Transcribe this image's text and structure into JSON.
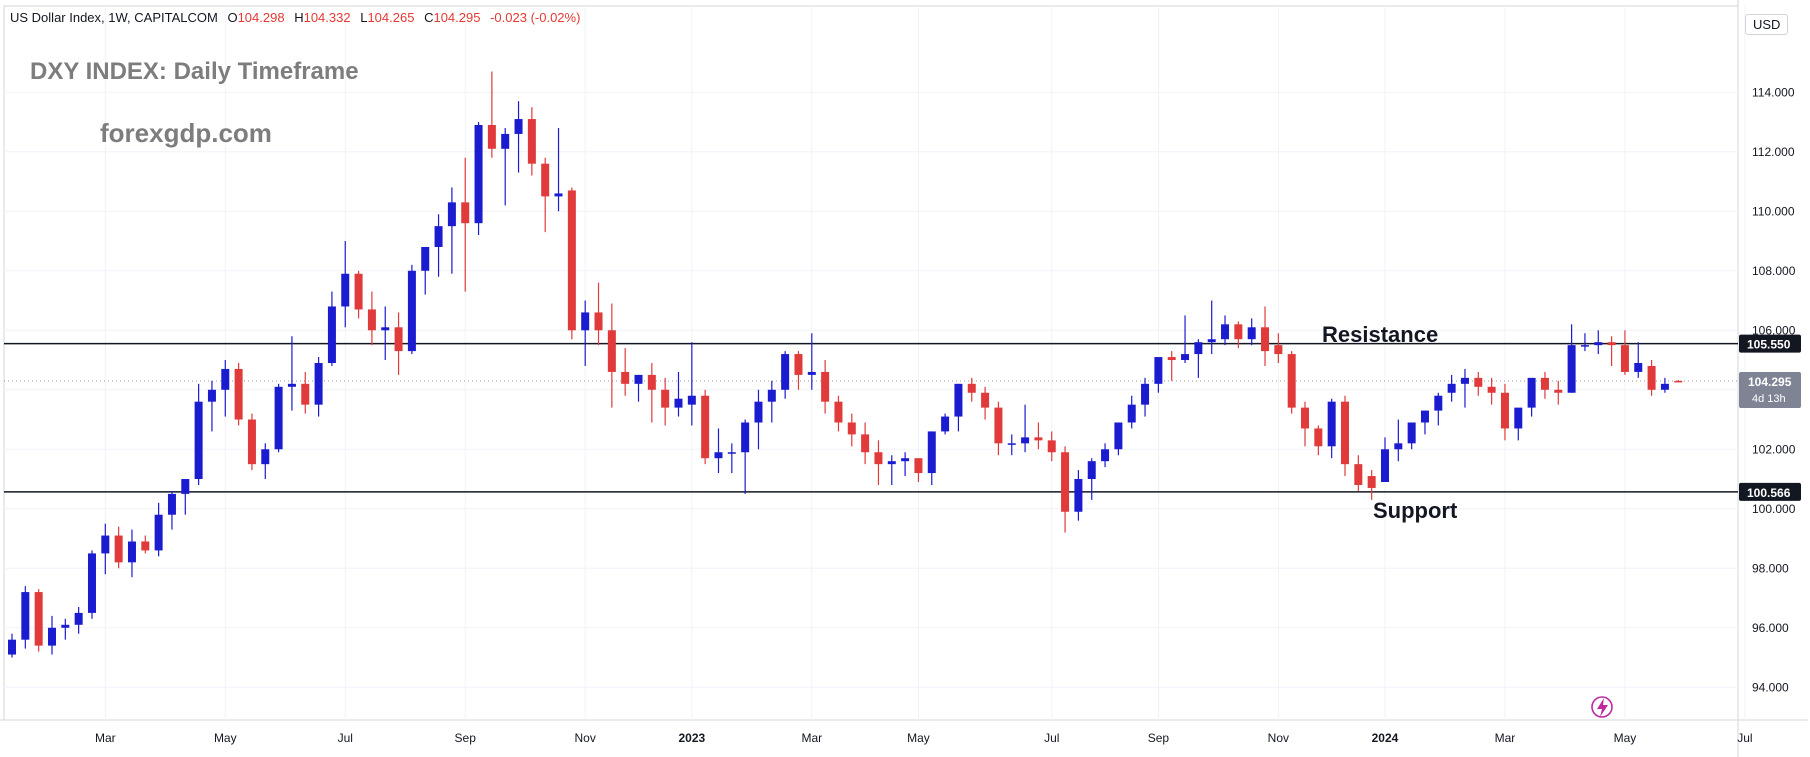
{
  "header": {
    "instrument": "US Dollar Index, 1W, CAPITALCOM",
    "open_label": "O",
    "open": "104.298",
    "high_label": "H",
    "high": "104.332",
    "low_label": "L",
    "low": "104.265",
    "close_label": "C",
    "close": "104.295",
    "change": "-0.023 (-0.02%)"
  },
  "overlay": {
    "title": "DXY INDEX: Daily Timeframe",
    "site": "forexgdp.com"
  },
  "currency_label": "USD",
  "annotations": {
    "resistance_label": "Resistance",
    "support_label": "Support"
  },
  "colors": {
    "bull": "#1b1bd0",
    "bear": "#e03a3a",
    "level_line": "#131722",
    "current_price_bg": "#7e8494",
    "level_tag_bg": "#131722",
    "grid": "#f0f3fa"
  },
  "chart_data": {
    "type": "candlestick",
    "y_axis": {
      "ticks": [
        "94.000",
        "96.000",
        "98.000",
        "100.000",
        "102.000",
        "104.000",
        "106.000",
        "108.000",
        "110.000",
        "112.000",
        "114.000"
      ],
      "ylim": [
        92.9,
        116.9
      ]
    },
    "x_axis": {
      "ticks": [
        {
          "label": "Mar",
          "bar": 7
        },
        {
          "label": "May",
          "bar": 16
        },
        {
          "label": "Jul",
          "bar": 25
        },
        {
          "label": "Sep",
          "bar": 34
        },
        {
          "label": "Nov",
          "bar": 43
        },
        {
          "label": "2023",
          "bar": 51,
          "bold": true
        },
        {
          "label": "Mar",
          "bar": 60
        },
        {
          "label": "May",
          "bar": 68
        },
        {
          "label": "Jul",
          "bar": 78
        },
        {
          "label": "Sep",
          "bar": 86
        },
        {
          "label": "Nov",
          "bar": 95
        },
        {
          "label": "2024",
          "bar": 103,
          "bold": true
        },
        {
          "label": "Mar",
          "bar": 112
        },
        {
          "label": "May",
          "bar": 121
        },
        {
          "label": "Jul",
          "bar": 130
        }
      ]
    },
    "levels": [
      {
        "name": "Resistance",
        "value": 105.55,
        "tag": "105.550"
      },
      {
        "name": "Support",
        "value": 100.566,
        "tag": "100.566"
      }
    ],
    "current_price": {
      "value": 104.295,
      "tag": "104.295",
      "countdown": "4d 13h"
    },
    "candles": [
      [
        95.1,
        95.8,
        95.0,
        95.6
      ],
      [
        95.6,
        97.4,
        95.3,
        97.2
      ],
      [
        97.2,
        97.3,
        95.2,
        95.4
      ],
      [
        95.4,
        96.4,
        95.1,
        96.0
      ],
      [
        96.0,
        96.3,
        95.6,
        96.1
      ],
      [
        96.1,
        96.7,
        95.8,
        96.5
      ],
      [
        96.5,
        98.6,
        96.3,
        98.5
      ],
      [
        98.5,
        99.5,
        97.8,
        99.1
      ],
      [
        99.1,
        99.4,
        98.0,
        98.2
      ],
      [
        98.2,
        99.3,
        97.7,
        98.9
      ],
      [
        98.9,
        99.1,
        98.5,
        98.6
      ],
      [
        98.6,
        100.2,
        98.4,
        99.8
      ],
      [
        99.8,
        100.6,
        99.3,
        100.5
      ],
      [
        100.5,
        101.0,
        99.8,
        101.0
      ],
      [
        101.0,
        104.2,
        100.8,
        103.6
      ],
      [
        103.6,
        104.3,
        102.6,
        104.0
      ],
      [
        104.0,
        105.0,
        103.1,
        104.7
      ],
      [
        104.7,
        104.9,
        102.8,
        103.0
      ],
      [
        103.0,
        103.2,
        101.3,
        101.5
      ],
      [
        101.5,
        102.2,
        101.0,
        102.0
      ],
      [
        102.0,
        104.2,
        101.9,
        104.1
      ],
      [
        104.1,
        105.8,
        103.3,
        104.2
      ],
      [
        104.2,
        104.6,
        103.2,
        103.5
      ],
      [
        103.5,
        105.1,
        103.1,
        104.9
      ],
      [
        104.9,
        107.3,
        104.8,
        106.8
      ],
      [
        106.8,
        109.0,
        106.1,
        107.9
      ],
      [
        107.9,
        108.0,
        106.4,
        106.7
      ],
      [
        106.7,
        107.3,
        105.5,
        106.0
      ],
      [
        106.0,
        106.8,
        105.0,
        106.1
      ],
      [
        106.1,
        106.6,
        104.5,
        105.3
      ],
      [
        105.3,
        108.2,
        105.2,
        108.0
      ],
      [
        108.0,
        108.6,
        107.2,
        108.8
      ],
      [
        108.8,
        109.9,
        107.8,
        109.5
      ],
      [
        109.5,
        110.8,
        107.9,
        110.3
      ],
      [
        110.3,
        111.8,
        107.3,
        109.6
      ],
      [
        109.6,
        113.0,
        109.2,
        112.9
      ],
      [
        112.9,
        114.7,
        111.8,
        112.1
      ],
      [
        112.1,
        112.8,
        110.2,
        112.6
      ],
      [
        112.6,
        113.7,
        111.3,
        113.1
      ],
      [
        113.1,
        113.5,
        111.2,
        111.6
      ],
      [
        111.6,
        111.8,
        109.3,
        110.5
      ],
      [
        110.5,
        112.8,
        110.0,
        110.6
      ],
      [
        110.7,
        110.8,
        105.7,
        106.0
      ],
      [
        106.0,
        107.0,
        104.8,
        106.6
      ],
      [
        106.6,
        107.6,
        105.5,
        106.0
      ],
      [
        106.0,
        106.9,
        103.4,
        104.6
      ],
      [
        104.6,
        105.4,
        103.8,
        104.2
      ],
      [
        104.2,
        104.5,
        103.6,
        104.5
      ],
      [
        104.5,
        104.9,
        102.9,
        104.0
      ],
      [
        104.0,
        104.4,
        102.8,
        103.4
      ],
      [
        103.4,
        104.6,
        103.1,
        103.7
      ],
      [
        103.5,
        105.6,
        102.8,
        103.8
      ],
      [
        103.8,
        104.0,
        101.5,
        101.7
      ],
      [
        101.7,
        102.7,
        101.2,
        101.9
      ],
      [
        101.9,
        102.2,
        101.2,
        101.9
      ],
      [
        101.9,
        103.0,
        100.5,
        102.9
      ],
      [
        102.9,
        104.0,
        102.0,
        103.6
      ],
      [
        103.6,
        104.3,
        102.9,
        104.0
      ],
      [
        104.0,
        105.3,
        103.7,
        105.2
      ],
      [
        105.2,
        105.3,
        104.0,
        104.5
      ],
      [
        104.5,
        105.9,
        104.0,
        104.6
      ],
      [
        104.6,
        105.0,
        103.2,
        103.6
      ],
      [
        103.6,
        103.8,
        102.6,
        102.9
      ],
      [
        102.9,
        103.2,
        102.1,
        102.5
      ],
      [
        102.5,
        102.9,
        101.5,
        101.9
      ],
      [
        101.9,
        102.3,
        100.8,
        101.5
      ],
      [
        101.5,
        101.8,
        100.8,
        101.6
      ],
      [
        101.6,
        101.9,
        101.1,
        101.7
      ],
      [
        101.7,
        101.7,
        100.9,
        101.2
      ],
      [
        101.2,
        102.6,
        100.8,
        102.6
      ],
      [
        102.6,
        103.2,
        102.5,
        103.1
      ],
      [
        103.1,
        104.2,
        102.6,
        104.2
      ],
      [
        104.2,
        104.4,
        103.6,
        103.9
      ],
      [
        103.9,
        104.1,
        103.0,
        103.4
      ],
      [
        103.4,
        103.6,
        101.8,
        102.2
      ],
      [
        102.2,
        102.5,
        101.8,
        102.2
      ],
      [
        102.2,
        103.5,
        101.9,
        102.4
      ],
      [
        102.4,
        102.9,
        102.0,
        102.3
      ],
      [
        102.3,
        102.6,
        101.6,
        101.9
      ],
      [
        101.9,
        102.1,
        99.2,
        99.9
      ],
      [
        99.9,
        101.3,
        99.6,
        101.0
      ],
      [
        101.0,
        101.7,
        100.3,
        101.6
      ],
      [
        101.6,
        102.2,
        101.4,
        102.0
      ],
      [
        102.0,
        102.9,
        101.8,
        102.9
      ],
      [
        102.9,
        103.8,
        102.7,
        103.5
      ],
      [
        103.5,
        104.4,
        103.1,
        104.2
      ],
      [
        104.2,
        105.0,
        103.9,
        105.1
      ],
      [
        105.1,
        105.3,
        104.3,
        105.0
      ],
      [
        105.0,
        106.5,
        104.9,
        105.2
      ],
      [
        105.2,
        105.7,
        104.4,
        105.6
      ],
      [
        105.6,
        107.0,
        105.2,
        105.7
      ],
      [
        105.7,
        106.5,
        105.5,
        106.2
      ],
      [
        106.2,
        106.3,
        105.4,
        105.7
      ],
      [
        105.7,
        106.4,
        105.5,
        106.1
      ],
      [
        106.1,
        106.8,
        104.8,
        105.3
      ],
      [
        105.5,
        105.9,
        104.9,
        105.2
      ],
      [
        105.2,
        105.3,
        103.2,
        103.4
      ],
      [
        103.4,
        103.6,
        102.1,
        102.7
      ],
      [
        102.7,
        102.8,
        101.8,
        102.1
      ],
      [
        102.1,
        103.7,
        101.7,
        103.6
      ],
      [
        103.6,
        103.8,
        101.1,
        101.5
      ],
      [
        101.5,
        101.8,
        100.6,
        100.8
      ],
      [
        101.1,
        101.3,
        100.3,
        100.7
      ],
      [
        100.9,
        102.4,
        100.9,
        102.0
      ],
      [
        102.0,
        103.0,
        101.6,
        102.2
      ],
      [
        102.2,
        102.8,
        102.0,
        102.9
      ],
      [
        102.9,
        103.3,
        102.5,
        103.3
      ],
      [
        103.3,
        103.9,
        102.8,
        103.8
      ],
      [
        103.9,
        104.5,
        103.6,
        104.2
      ],
      [
        104.2,
        104.7,
        103.4,
        104.4
      ],
      [
        104.4,
        104.6,
        103.8,
        104.1
      ],
      [
        104.1,
        104.4,
        103.5,
        103.9
      ],
      [
        103.9,
        104.2,
        102.3,
        102.7
      ],
      [
        102.7,
        103.2,
        102.3,
        103.4
      ],
      [
        103.4,
        104.4,
        103.1,
        104.4
      ],
      [
        104.4,
        104.6,
        103.7,
        104.0
      ],
      [
        104.0,
        104.3,
        103.5,
        103.9
      ],
      [
        103.9,
        106.2,
        103.9,
        105.5
      ],
      [
        105.5,
        105.9,
        105.3,
        105.5
      ],
      [
        105.5,
        106.0,
        105.2,
        105.6
      ],
      [
        105.6,
        105.8,
        104.8,
        105.5
      ],
      [
        105.5,
        106.0,
        104.5,
        104.6
      ],
      [
        104.6,
        105.6,
        104.4,
        104.9
      ],
      [
        104.8,
        105.0,
        103.8,
        104.0
      ],
      [
        104.0,
        104.4,
        103.9,
        104.2
      ],
      [
        104.298,
        104.332,
        104.265,
        104.295
      ]
    ]
  }
}
